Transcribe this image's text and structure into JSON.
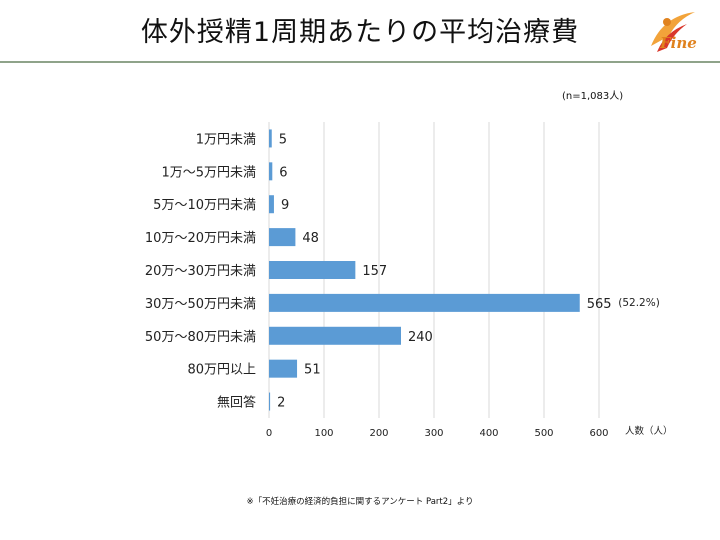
{
  "title": "体外授精1周期あたりの平均治療費",
  "logo_text": "Fine",
  "note": "(n=1,083人)",
  "source": "※「不妊治療の経済的負担に関するアンケート Part2」より",
  "colors": {
    "bar": "#5b9bd5",
    "rule": "#8fa38a",
    "logo": "#e0821e"
  },
  "chart_data": {
    "type": "bar",
    "orientation": "horizontal",
    "categories": [
      "1万円未満",
      "1万〜5万円未満",
      "5万〜10万円未満",
      "10万〜20万円未満",
      "20万〜30万円未満",
      "30万〜50万円未満",
      "50万〜80万円未満",
      "80万円以上",
      "無回答"
    ],
    "values": [
      5,
      6,
      9,
      48,
      157,
      565,
      240,
      51,
      2
    ],
    "annotations": [
      {
        "category": "30万〜50万円未満",
        "text": "(52.2%)"
      }
    ],
    "xticks": [
      "0",
      "100",
      "200",
      "300",
      "400",
      "500",
      "600"
    ],
    "xlabel": "人数（人）",
    "xlim": [
      0,
      600
    ],
    "grid": true
  }
}
